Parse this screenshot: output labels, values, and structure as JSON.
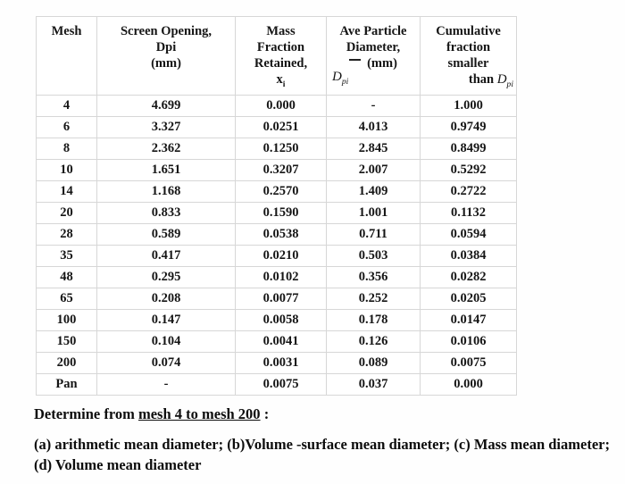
{
  "table": {
    "headers": {
      "col1": "Mesh",
      "col2_line1": "Screen Opening,",
      "col2_line2": "Dpi",
      "col2_line3": "(mm)",
      "col3_line1": "Mass",
      "col3_line2": "Fraction",
      "col3_line3": "Retained,",
      "col3_x": "x",
      "col3_x_sub": "i",
      "col4_line1": "Ave Particle",
      "col4_line2": "Diameter,",
      "col4_mm": "(mm)",
      "col4_d": "D",
      "col4_d_sub": "pi",
      "col5_line1": "Cumulative",
      "col5_line2": "fraction",
      "col5_line3": "smaller",
      "col5_than": "than ",
      "col5_d": "D",
      "col5_d_sub": "pi"
    },
    "rows": [
      [
        "4",
        "4.699",
        "0.000",
        "-",
        "1.000"
      ],
      [
        "6",
        "3.327",
        "0.0251",
        "4.013",
        "0.9749"
      ],
      [
        "8",
        "2.362",
        "0.1250",
        "2.845",
        "0.8499"
      ],
      [
        "10",
        "1.651",
        "0.3207",
        "2.007",
        "0.5292"
      ],
      [
        "14",
        "1.168",
        "0.2570",
        "1.409",
        "0.2722"
      ],
      [
        "20",
        "0.833",
        "0.1590",
        "1.001",
        "0.1132"
      ],
      [
        "28",
        "0.589",
        "0.0538",
        "0.711",
        "0.0594"
      ],
      [
        "35",
        "0.417",
        "0.0210",
        "0.503",
        "0.0384"
      ],
      [
        "48",
        "0.295",
        "0.0102",
        "0.356",
        "0.0282"
      ],
      [
        "65",
        "0.208",
        "0.0077",
        "0.252",
        "0.0205"
      ],
      [
        "100",
        "0.147",
        "0.0058",
        "0.178",
        "0.0147"
      ],
      [
        "150",
        "0.104",
        "0.0041",
        "0.126",
        "0.0106"
      ],
      [
        "200",
        "0.074",
        "0.0031",
        "0.089",
        "0.0075"
      ],
      [
        "Pan",
        "-",
        "0.0075",
        "0.037",
        "0.000"
      ]
    ]
  },
  "question": {
    "intro_prefix": "Determine from ",
    "intro_underlined": "mesh 4 to mesh 200",
    "intro_suffix": " :",
    "parts_line1": "(a) arithmetic mean diameter; (b)Volume -surface mean diameter; (c) Mass mean diameter;",
    "parts_line2": "(d) Volume mean diameter"
  }
}
